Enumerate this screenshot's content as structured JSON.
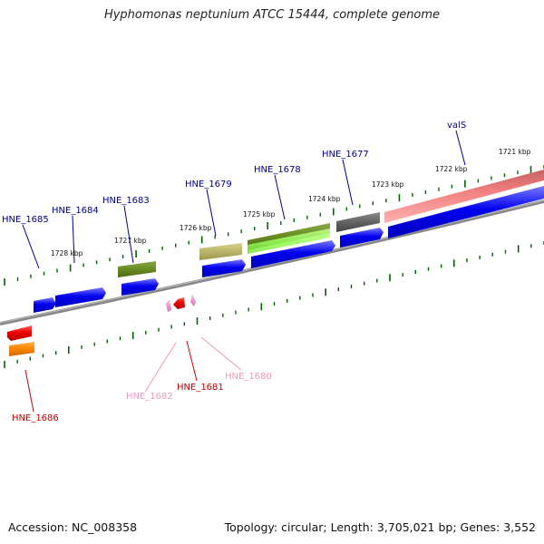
{
  "header": {
    "title": "Hyphomonas neptunium ATCC 15444, complete genome"
  },
  "footer": {
    "accession": "Accession: NC_008358",
    "topology": "Topology: circular; Length: 3,705,021 bp; Genes: 3,552"
  },
  "colors": {
    "blue_gene": "#0000ee",
    "olive_gene": "#6b8e23",
    "khaki_gene": "#bdb76b",
    "lime_gene": "#9aff5a",
    "gray_gene": "#666666",
    "salmon_gene": "#f08080",
    "red_gene": "#ee0000",
    "orange_gene": "#ff8800",
    "pink_gene": "#ee99cc",
    "label_blue": "#00008b",
    "label_red": "#cc0000",
    "label_pink": "#ee99bb",
    "backbone": "#888888",
    "tick": "#006400"
  },
  "kbp_labels": [
    "1721 kbp",
    "1722 kbp",
    "1723 kbp",
    "1724 kbp",
    "1725 kbp",
    "1726 kbp",
    "1727 kbp",
    "1728 kbp"
  ],
  "gene_labels": [
    {
      "id": "valS",
      "text": "valS",
      "color": "label_blue"
    },
    {
      "id": "HNE_1677",
      "text": "HNE_1677",
      "color": "label_blue"
    },
    {
      "id": "HNE_1678",
      "text": "HNE_1678",
      "color": "label_blue"
    },
    {
      "id": "HNE_1679",
      "text": "HNE_1679",
      "color": "label_blue"
    },
    {
      "id": "HNE_1683",
      "text": "HNE_1683",
      "color": "label_blue"
    },
    {
      "id": "HNE_1684",
      "text": "HNE_1684",
      "color": "label_blue"
    },
    {
      "id": "HNE_1685",
      "text": "HNE_1685",
      "color": "label_blue"
    },
    {
      "id": "HNE_1680",
      "text": "HNE_1680",
      "color": "label_pink"
    },
    {
      "id": "HNE_1681",
      "text": "HNE_1681",
      "color": "label_red"
    },
    {
      "id": "HNE_1682",
      "text": "HNE_1682",
      "color": "label_pink"
    },
    {
      "id": "HNE_1686",
      "text": "HNE_1686",
      "color": "label_red"
    }
  ]
}
